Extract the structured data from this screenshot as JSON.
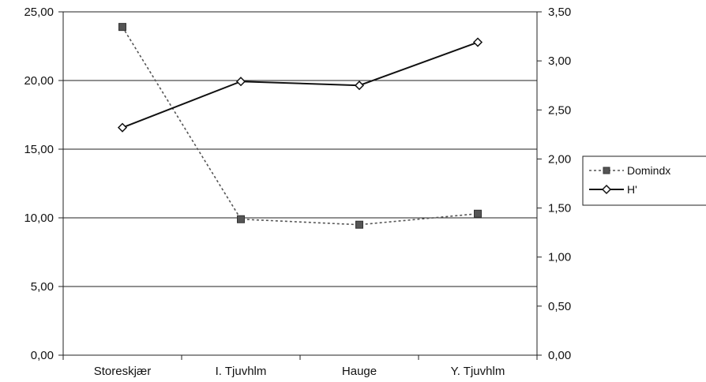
{
  "chart_data": {
    "type": "line",
    "categories": [
      "Storeskjær",
      "I. Tjuvhlm",
      "Hauge",
      "Y. Tjuvhlm"
    ],
    "series": [
      {
        "name": "Domindx",
        "axis": "left",
        "values": [
          23.9,
          9.9,
          9.5,
          10.3
        ],
        "style": "dotted",
        "marker": "square",
        "color": "#555555"
      },
      {
        "name": "H'",
        "axis": "right",
        "values": [
          2.32,
          2.79,
          2.75,
          3.19
        ],
        "style": "solid",
        "marker": "diamond",
        "color": "#111111"
      }
    ],
    "ylim_left": [
      0,
      25
    ],
    "ylim_right": [
      0,
      3.5
    ],
    "yticks_left": [
      "0,00",
      "5,00",
      "10,00",
      "15,00",
      "20,00",
      "25,00"
    ],
    "yticks_right": [
      "0,00",
      "0,50",
      "1,00",
      "1,50",
      "2,00",
      "2,50",
      "3,00",
      "3,50"
    ],
    "grid": "horizontal",
    "legend": "right",
    "title": "",
    "xlabel": "",
    "ylabel": ""
  }
}
